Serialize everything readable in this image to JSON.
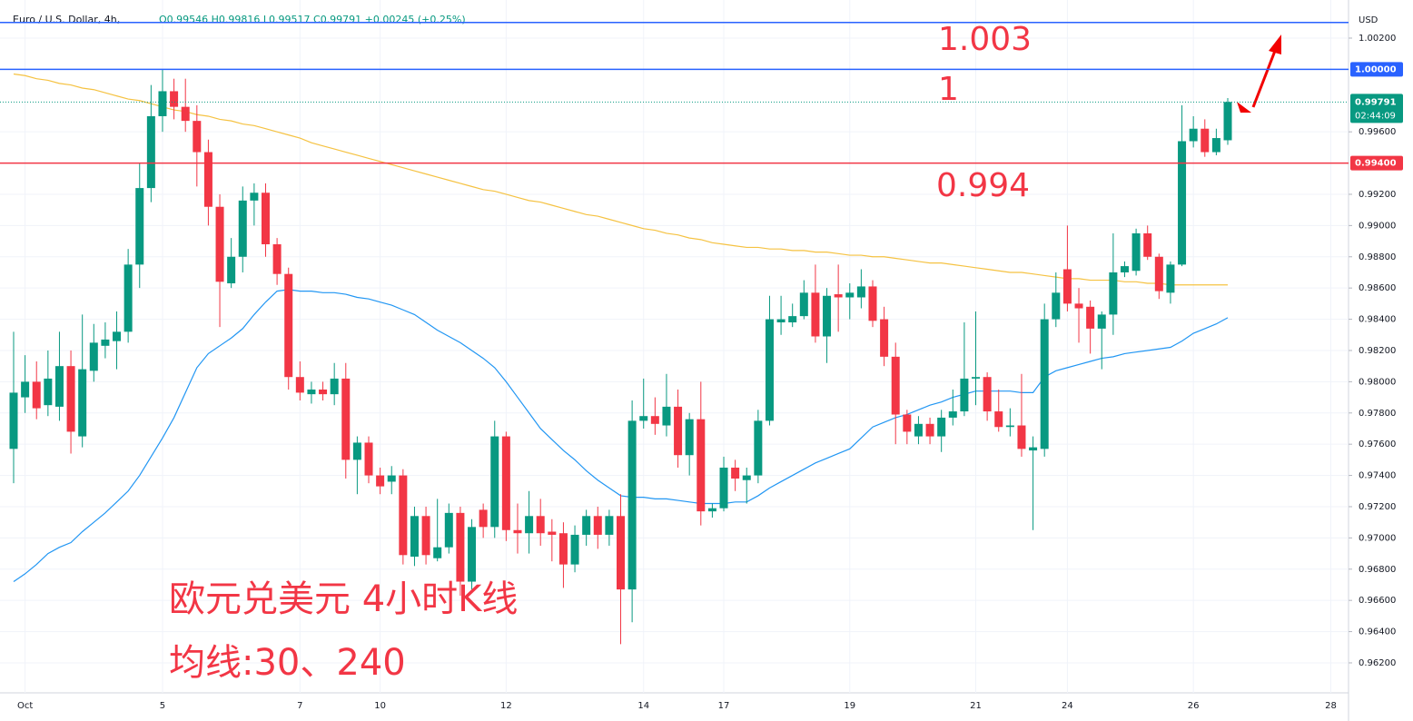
{
  "chart_data": {
    "type": "candlestick",
    "title": "Euro / U.S. Dollar, 4h,",
    "header_ohlc": "O0.99546 H0.99816 L0.99517 C0.99791 +0.00245 (+0.25%)",
    "currency": "USD",
    "categories": [
      null,
      "Oct",
      null,
      null,
      null,
      null,
      null,
      null,
      null,
      null,
      null,
      null,
      null,
      "5",
      null,
      null,
      null,
      null,
      null,
      null,
      null,
      null,
      null,
      null,
      null,
      "7",
      null,
      null,
      null,
      null,
      null,
      null,
      "10",
      null,
      null,
      null,
      null,
      null,
      null,
      null,
      null,
      null,
      null,
      "12",
      null,
      null,
      null,
      null,
      null,
      null,
      null,
      null,
      null,
      null,
      null,
      "14",
      null,
      null,
      null,
      null,
      null,
      null,
      "17",
      null,
      null,
      null,
      null,
      null,
      null,
      null,
      null,
      null,
      null,
      "19",
      null,
      null,
      null,
      null,
      null,
      null,
      null,
      null,
      null,
      null,
      "21",
      null,
      null,
      null,
      null,
      null,
      null,
      null,
      "24",
      null,
      null,
      null,
      null,
      null,
      null,
      null,
      null,
      null,
      null,
      "26",
      null,
      null,
      null,
      null,
      null,
      null,
      null,
      null,
      null,
      null,
      null,
      "28"
    ],
    "open": [
      0.9757,
      0.979,
      0.98,
      0.9785,
      0.9784,
      0.981,
      0.9765,
      0.9807,
      0.9823,
      0.9826,
      0.9832,
      0.9875,
      0.9924,
      0.997,
      0.9986,
      0.9976,
      0.9967,
      0.9947,
      0.9912,
      0.9863,
      0.988,
      0.9916,
      0.9921,
      0.9888,
      0.9869,
      0.9803,
      0.9792,
      0.9795,
      0.9792,
      0.9802,
      0.975,
      0.9761,
      0.974,
      0.9736,
      0.974,
      0.9688,
      0.9714,
      0.9687,
      0.9694,
      0.9716,
      0.9672,
      0.9718,
      0.9707,
      0.9765,
      0.9705,
      0.9703,
      0.9714,
      0.9704,
      0.9703,
      0.9683,
      0.9702,
      0.9714,
      0.9702,
      0.9714,
      0.9667,
      0.9775,
      0.9778,
      0.9772,
      0.9784,
      0.9753,
      0.9776,
      0.9717,
      0.9719,
      0.9745,
      0.9737,
      0.974,
      0.9775,
      0.9838,
      0.9838,
      0.9842,
      0.9857,
      0.9829,
      0.9856,
      0.9854,
      0.9854,
      0.9861,
      0.984,
      0.9816,
      0.9779,
      0.9765,
      0.9773,
      0.9765,
      0.9777,
      0.9781,
      0.9802,
      0.9803,
      0.9781,
      0.9771,
      0.9772,
      0.9756,
      0.9757,
      0.984,
      0.9872,
      0.985,
      0.9848,
      0.9834,
      0.9843,
      0.987,
      0.9871,
      0.9895,
      0.988,
      0.9857,
      0.9875,
      0.9954,
      0.9962,
      0.9947,
      0.99546,
      null,
      null,
      null,
      null,
      null,
      null,
      null,
      null,
      null
    ],
    "high": [
      0.9832,
      0.9817,
      0.9813,
      0.982,
      0.9832,
      0.982,
      0.9843,
      0.9837,
      0.9838,
      0.9845,
      0.9885,
      0.994,
      0.999,
      1.0,
      0.9994,
      0.9994,
      0.9977,
      0.9955,
      0.992,
      0.9892,
      0.9925,
      0.9927,
      0.9927,
      0.9892,
      0.9873,
      0.9813,
      0.98,
      0.98,
      0.9812,
      0.9812,
      0.9765,
      0.9765,
      0.9745,
      0.9746,
      0.9744,
      0.972,
      0.972,
      0.9725,
      0.9722,
      0.972,
      0.9712,
      0.9722,
      0.9775,
      0.9768,
      0.9722,
      0.973,
      0.9725,
      0.9712,
      0.971,
      0.9708,
      0.9718,
      0.972,
      0.9718,
      0.9728,
      0.9788,
      0.9802,
      0.979,
      0.9805,
      0.9795,
      0.978,
      0.98,
      0.9722,
      0.9752,
      0.975,
      0.9745,
      0.9782,
      0.9855,
      0.9855,
      0.985,
      0.9865,
      0.9875,
      0.986,
      0.9875,
      0.9863,
      0.9872,
      0.9865,
      0.9848,
      0.9825,
      0.9782,
      0.9778,
      0.9777,
      0.9782,
      0.9795,
      0.9838,
      0.9845,
      0.9806,
      0.9795,
      0.9783,
      0.9805,
      0.9765,
      0.985,
      0.987,
      0.99,
      0.986,
      0.9852,
      0.9845,
      0.9895,
      0.9877,
      0.9898,
      0.99,
      0.9882,
      0.9877,
      0.9977,
      0.997,
      0.9968,
      0.9962,
      0.99816,
      null,
      null,
      null,
      null,
      null,
      null,
      null,
      null,
      null
    ],
    "low": [
      0.9735,
      0.978,
      0.9776,
      0.9778,
      0.9775,
      0.9754,
      0.9758,
      0.98,
      0.9815,
      0.9808,
      0.9825,
      0.986,
      0.9915,
      0.996,
      0.9968,
      0.996,
      0.9925,
      0.99,
      0.9835,
      0.986,
      0.987,
      0.99,
      0.988,
      0.9862,
      0.9795,
      0.9788,
      0.9786,
      0.9788,
      0.9785,
      0.9738,
      0.9728,
      0.9735,
      0.9728,
      0.9728,
      0.9683,
      0.9682,
      0.9683,
      0.9685,
      0.969,
      0.9663,
      0.9667,
      0.97,
      0.97,
      0.9698,
      0.969,
      0.969,
      0.9695,
      0.9685,
      0.9668,
      0.9678,
      0.9695,
      0.9693,
      0.9695,
      0.9632,
      0.9646,
      0.977,
      0.9766,
      0.9765,
      0.9745,
      0.974,
      0.9708,
      0.9713,
      0.9717,
      0.973,
      0.9722,
      0.9735,
      0.9772,
      0.983,
      0.9835,
      0.984,
      0.9825,
      0.9812,
      0.9832,
      0.984,
      0.9847,
      0.9835,
      0.981,
      0.976,
      0.976,
      0.976,
      0.976,
      0.9755,
      0.9772,
      0.9778,
      0.9785,
      0.9775,
      0.9768,
      0.9765,
      0.9752,
      0.9705,
      0.9752,
      0.9835,
      0.9845,
      0.9825,
      0.9818,
      0.9808,
      0.983,
      0.9867,
      0.9868,
      0.9878,
      0.9853,
      0.985,
      0.9874,
      0.995,
      0.9944,
      0.9945,
      0.99517,
      null,
      null,
      null,
      null,
      null,
      null,
      null,
      null,
      null
    ],
    "close": [
      0.9793,
      0.98,
      0.9783,
      0.9802,
      0.981,
      0.9768,
      0.9808,
      0.9825,
      0.9827,
      0.9832,
      0.9875,
      0.9924,
      0.997,
      0.9986,
      0.9976,
      0.9967,
      0.9947,
      0.9912,
      0.9864,
      0.988,
      0.9916,
      0.9921,
      0.9888,
      0.9869,
      0.9803,
      0.9793,
      0.9795,
      0.9792,
      0.9802,
      0.975,
      0.9761,
      0.974,
      0.9733,
      0.974,
      0.9689,
      0.9714,
      0.9689,
      0.9694,
      0.9716,
      0.9672,
      0.9707,
      0.9707,
      0.9765,
      0.9705,
      0.9703,
      0.9714,
      0.9703,
      0.9702,
      0.9683,
      0.9702,
      0.9714,
      0.9702,
      0.9714,
      0.9667,
      0.9775,
      0.9778,
      0.9773,
      0.9784,
      0.9753,
      0.9776,
      0.9717,
      0.9719,
      0.9745,
      0.9738,
      0.974,
      0.9775,
      0.984,
      0.984,
      0.9842,
      0.9857,
      0.9829,
      0.9855,
      0.9854,
      0.9857,
      0.9861,
      0.9839,
      0.9816,
      0.9779,
      0.9768,
      0.9773,
      0.9765,
      0.9777,
      0.9781,
      0.9802,
      0.9803,
      0.9781,
      0.9771,
      0.9772,
      0.9757,
      0.9758,
      0.984,
      0.9857,
      0.985,
      0.9847,
      0.9834,
      0.9843,
      0.987,
      0.9874,
      0.9895,
      0.988,
      0.9858,
      0.9875,
      0.9954,
      0.9962,
      0.9947,
      0.9956,
      0.99791,
      null,
      null,
      null,
      null,
      null,
      null,
      null,
      null,
      null
    ],
    "up_color": "#089981",
    "down_color": "#f23645",
    "series": [
      {
        "name": "30",
        "color": "#2196f3",
        "values": [
          0.9672,
          0.9677,
          0.9683,
          0.969,
          0.9694,
          0.9697,
          0.9704,
          0.971,
          0.9716,
          0.9723,
          0.973,
          0.974,
          0.9752,
          0.9764,
          0.9777,
          0.9793,
          0.9809,
          0.9818,
          0.9823,
          0.9828,
          0.9834,
          0.9843,
          0.9851,
          0.9858,
          0.9859,
          0.9858,
          0.9858,
          0.9857,
          0.9857,
          0.9856,
          0.9854,
          0.9853,
          0.9851,
          0.9849,
          0.9846,
          0.9843,
          0.9838,
          0.9833,
          0.9829,
          0.9825,
          0.982,
          0.9815,
          0.9809,
          0.98,
          0.979,
          0.978,
          0.977,
          0.9763,
          0.9756,
          0.975,
          0.9743,
          0.9737,
          0.9732,
          0.9727,
          0.9726,
          0.9726,
          0.9725,
          0.9725,
          0.9724,
          0.9723,
          0.9722,
          0.9722,
          0.9722,
          0.9723,
          0.9723,
          0.9727,
          0.9732,
          0.9736,
          0.974,
          0.9744,
          0.9748,
          0.9751,
          0.9754,
          0.9757,
          0.9764,
          0.9771,
          0.9774,
          0.9777,
          0.9779,
          0.9782,
          0.9785,
          0.9787,
          0.979,
          0.9792,
          0.9794,
          0.9794,
          0.9794,
          0.9794,
          0.9793,
          0.9793,
          0.9803,
          0.9807,
          0.9809,
          0.9811,
          0.9813,
          0.9815,
          0.9816,
          0.9818,
          0.9819,
          0.982,
          0.9821,
          0.9822,
          0.9826,
          0.9831,
          0.9834,
          0.9837,
          0.9841,
          null,
          null,
          null,
          null,
          null,
          null,
          null,
          null,
          null
        ]
      },
      {
        "name": "240",
        "color": "#f5c242",
        "values": [
          0.9997,
          0.9996,
          0.9994,
          0.9993,
          0.9991,
          0.999,
          0.9988,
          0.9987,
          0.9985,
          0.9983,
          0.9981,
          0.998,
          0.9978,
          0.9976,
          0.9974,
          0.9973,
          0.9971,
          0.997,
          0.9968,
          0.9967,
          0.9965,
          0.9964,
          0.9962,
          0.996,
          0.9958,
          0.9956,
          0.9953,
          0.9951,
          0.9949,
          0.9947,
          0.9945,
          0.9943,
          0.9941,
          0.9939,
          0.9937,
          0.9935,
          0.9933,
          0.9931,
          0.9929,
          0.9927,
          0.9925,
          0.9923,
          0.9922,
          0.992,
          0.9918,
          0.9916,
          0.9915,
          0.9913,
          0.9911,
          0.9909,
          0.9907,
          0.9906,
          0.9904,
          0.9902,
          0.99,
          0.9898,
          0.9897,
          0.9895,
          0.9894,
          0.9892,
          0.9891,
          0.9889,
          0.9888,
          0.9887,
          0.9886,
          0.9886,
          0.9885,
          0.9885,
          0.9884,
          0.9884,
          0.9883,
          0.9883,
          0.9882,
          0.9881,
          0.9881,
          0.988,
          0.988,
          0.9879,
          0.9878,
          0.9877,
          0.9876,
          0.9876,
          0.9875,
          0.9874,
          0.9873,
          0.9872,
          0.9871,
          0.987,
          0.987,
          0.9869,
          0.9868,
          0.9867,
          0.9866,
          0.9866,
          0.9865,
          0.9865,
          0.9865,
          0.9864,
          0.9864,
          0.9863,
          0.9863,
          0.9862,
          0.9862,
          0.9862,
          0.9862,
          0.9862,
          0.9862,
          null,
          null,
          null,
          null,
          null,
          null,
          null,
          null,
          null
        ]
      }
    ],
    "ylim": [
      0.96008,
      1.00444
    ],
    "yticks": [
      {
        "value": 0.962,
        "label": "0.96200"
      },
      {
        "value": 0.964,
        "label": "0.96400"
      },
      {
        "value": 0.966,
        "label": "0.96600"
      },
      {
        "value": 0.968,
        "label": "0.96800"
      },
      {
        "value": 0.97,
        "label": "0.97000"
      },
      {
        "value": 0.972,
        "label": "0.97200"
      },
      {
        "value": 0.974,
        "label": "0.97400"
      },
      {
        "value": 0.976,
        "label": "0.97600"
      },
      {
        "value": 0.978,
        "label": "0.97800"
      },
      {
        "value": 0.98,
        "label": "0.98000"
      },
      {
        "value": 0.982,
        "label": "0.98200"
      },
      {
        "value": 0.984,
        "label": "0.98400"
      },
      {
        "value": 0.986,
        "label": "0.98600"
      },
      {
        "value": 0.988,
        "label": "0.98800"
      },
      {
        "value": 0.99,
        "label": "0.99000"
      },
      {
        "value": 0.992,
        "label": "0.99200"
      },
      {
        "value": 0.996,
        "label": "0.99600"
      },
      {
        "value": 1.002,
        "label": "1.00200"
      }
    ],
    "levels": [
      {
        "value": 1.003,
        "color": "#2962ff"
      },
      {
        "value": 1.0,
        "label": "1.00000",
        "color": "#2962ff"
      },
      {
        "value": 0.994,
        "label": "0.99400",
        "color": "#f23645"
      }
    ],
    "last_price": {
      "value": 0.99791,
      "label": "0.99791",
      "countdown": "02:44:09",
      "color": "#089981"
    },
    "annotations": [
      "1.003",
      "1",
      "0.994",
      "欧元兑美元 4小时K线",
      "均线:30、240"
    ]
  }
}
